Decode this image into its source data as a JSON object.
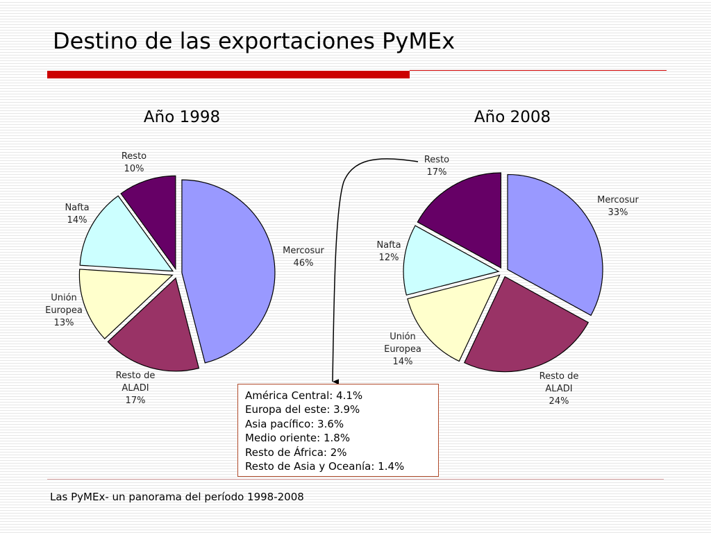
{
  "slide": {
    "title": "Destino de las exportaciones PyMEx",
    "footer": "Las PyMEx- un panorama del período 1998-2008",
    "accent_color": "#cc0000"
  },
  "info_box": {
    "lines": [
      "América Central: 4.1%",
      "Europa del este: 3.9%",
      "Asia pacífico: 3.6%",
      "Medio oriente: 1.8%",
      "Resto de África: 2%",
      "Resto de Asia y Oceanía: 1.4%"
    ],
    "border_color": "#b04a2a"
  },
  "chart_data": [
    {
      "type": "pie",
      "title": "Año 1998",
      "categories": [
        "Mercosur",
        "Resto de ALADI",
        "Unión Europea",
        "Nafta",
        "Resto"
      ],
      "values": [
        46,
        17,
        13,
        14,
        10
      ],
      "labels": [
        [
          "Mercosur",
          "46%"
        ],
        [
          "Resto de",
          "ALADI",
          "17%"
        ],
        [
          "Unión",
          "Europea",
          "13%"
        ],
        [
          "Nafta",
          "14%"
        ],
        [
          "Resto",
          "10%"
        ]
      ],
      "colors": [
        "#9999ff",
        "#993366",
        "#ffffcc",
        "#ccffff",
        "#660066"
      ],
      "exploded": true
    },
    {
      "type": "pie",
      "title": "Año 2008",
      "categories": [
        "Mercosur",
        "Resto de ALADI",
        "Unión Europea",
        "Nafta",
        "Resto"
      ],
      "values": [
        33,
        24,
        14,
        12,
        17
      ],
      "labels": [
        [
          "Mercosur",
          "33%"
        ],
        [
          "Resto de",
          "ALADI",
          "24%"
        ],
        [
          "Unión",
          "Europea",
          "14%"
        ],
        [
          "Nafta",
          "12%"
        ],
        [
          "Resto",
          "17%"
        ]
      ],
      "colors": [
        "#9999ff",
        "#993366",
        "#ffffcc",
        "#ccffff",
        "#660066"
      ],
      "exploded": true
    }
  ]
}
